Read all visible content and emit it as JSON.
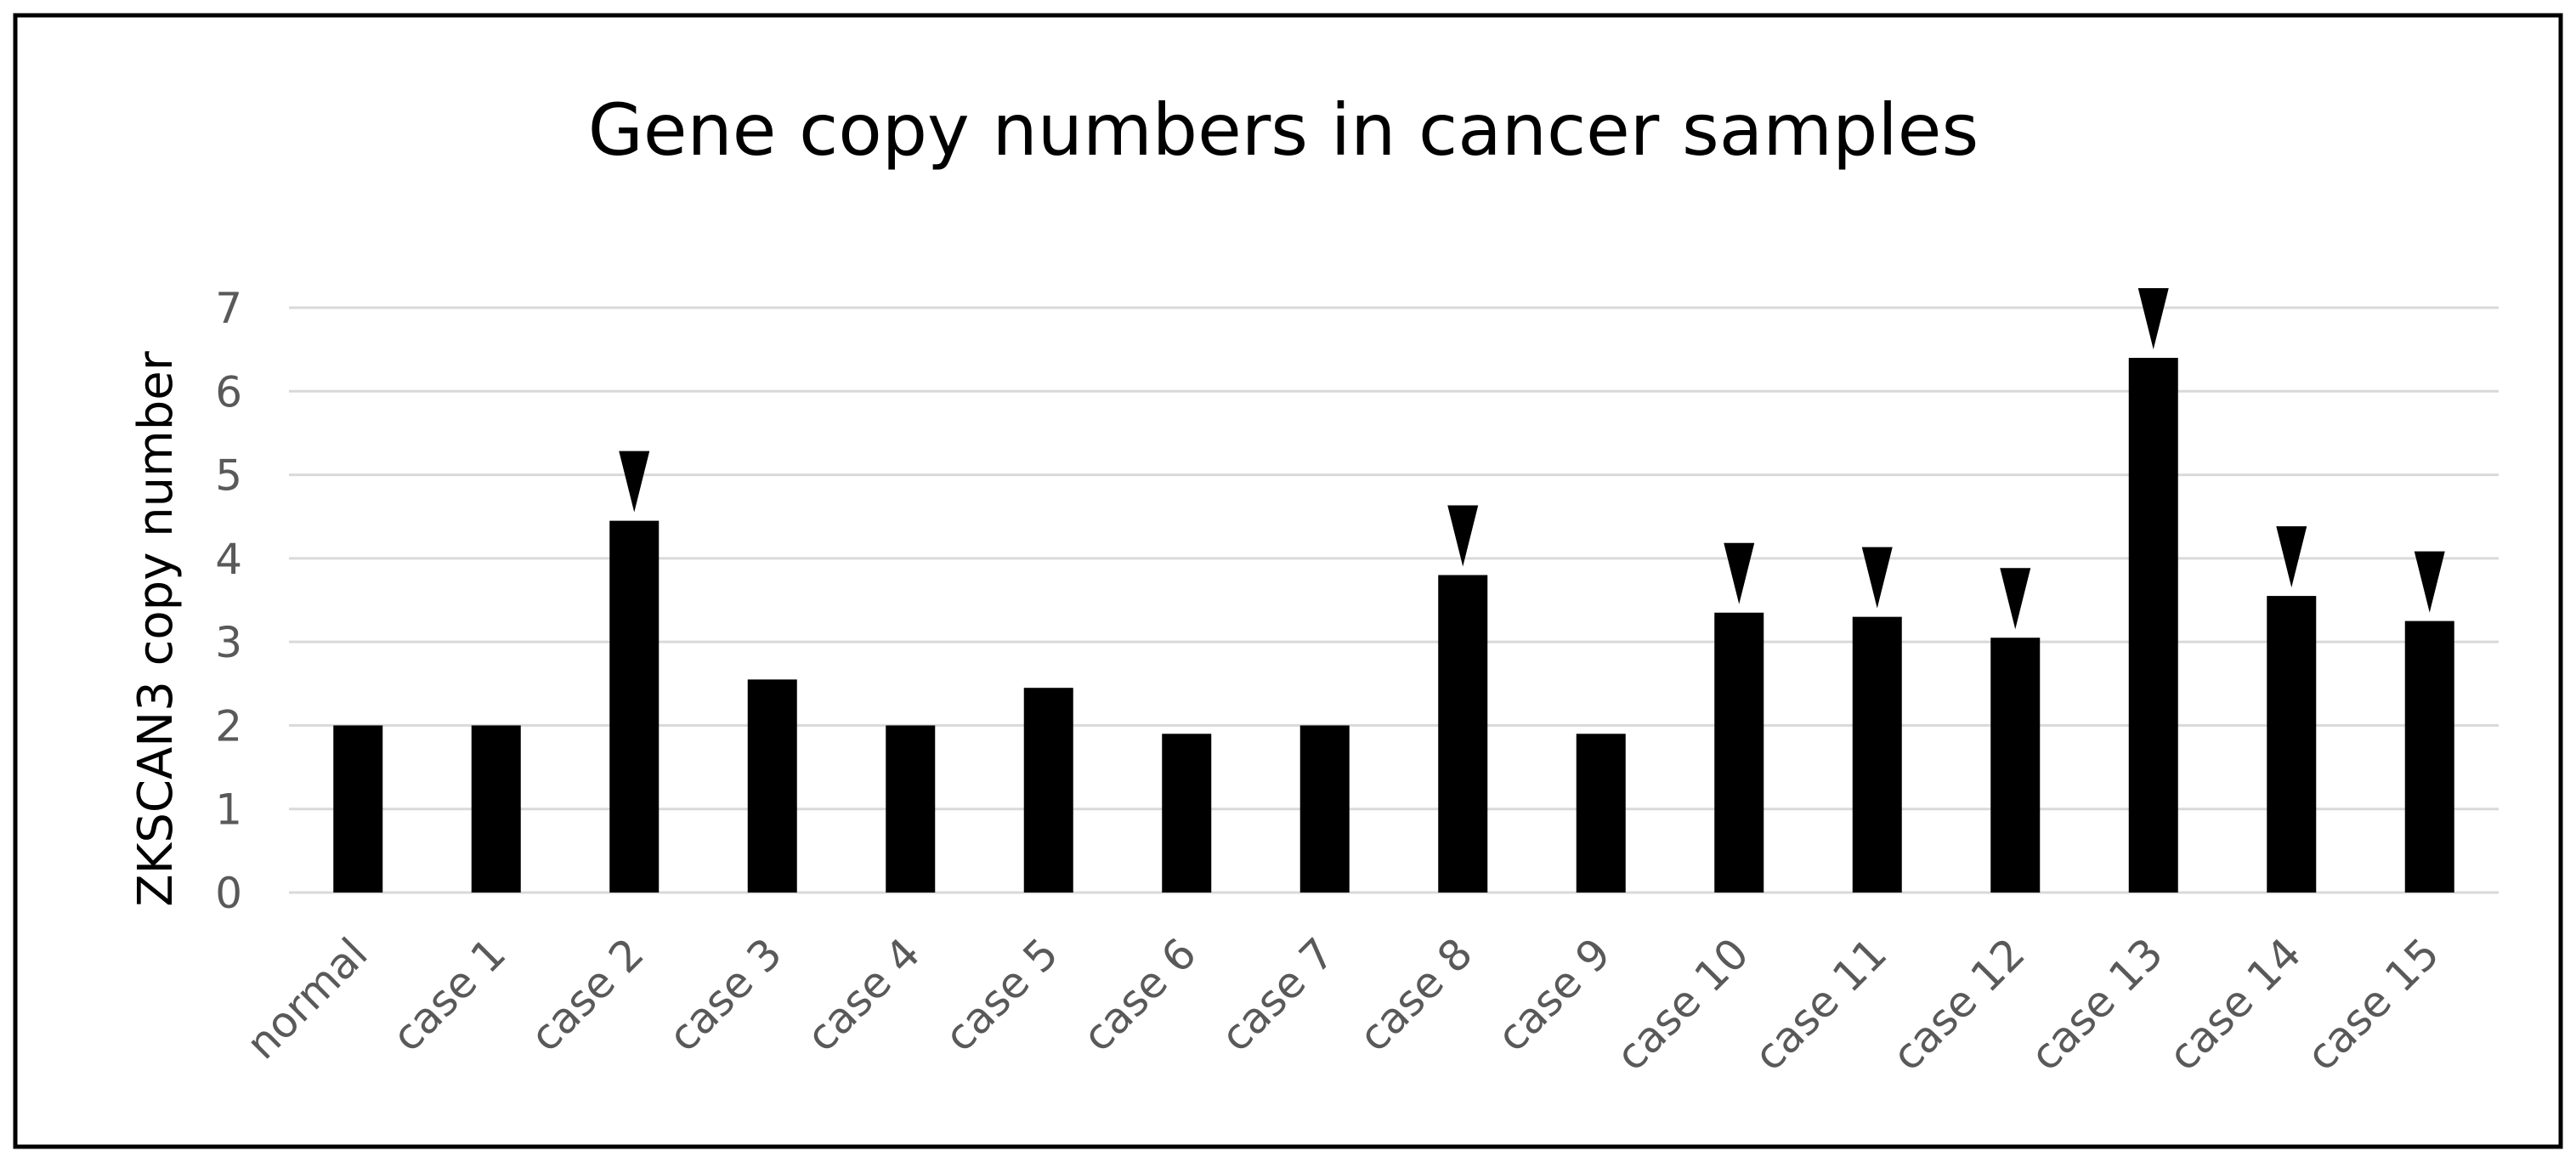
{
  "chart_data": {
    "type": "bar",
    "title": "Gene copy numbers in cancer samples",
    "xlabel": "",
    "ylabel": "ZKSCAN3 copy number",
    "ylim": [
      0,
      7
    ],
    "yticks": [
      "0",
      "1",
      "2",
      "3",
      "4",
      "5",
      "6",
      "7"
    ],
    "grid": true,
    "legend": "none",
    "bar_color": "#000000",
    "grid_color": "#d9d9d9",
    "categories": [
      "normal",
      "case 1",
      "case 2",
      "case 3",
      "case 4",
      "case 5",
      "case 6",
      "case 7",
      "case 8",
      "case 9",
      "case 10",
      "case 11",
      "case 12",
      "case 13",
      "case 14",
      "case 15"
    ],
    "values": [
      2.0,
      2.0,
      4.45,
      2.55,
      2.0,
      2.45,
      1.9,
      2.0,
      3.8,
      1.9,
      3.35,
      3.3,
      3.05,
      6.4,
      3.55,
      3.25
    ],
    "marked": [
      false,
      false,
      true,
      false,
      false,
      false,
      false,
      false,
      true,
      false,
      true,
      true,
      true,
      true,
      true,
      true
    ],
    "marker": "arrowhead-down"
  }
}
